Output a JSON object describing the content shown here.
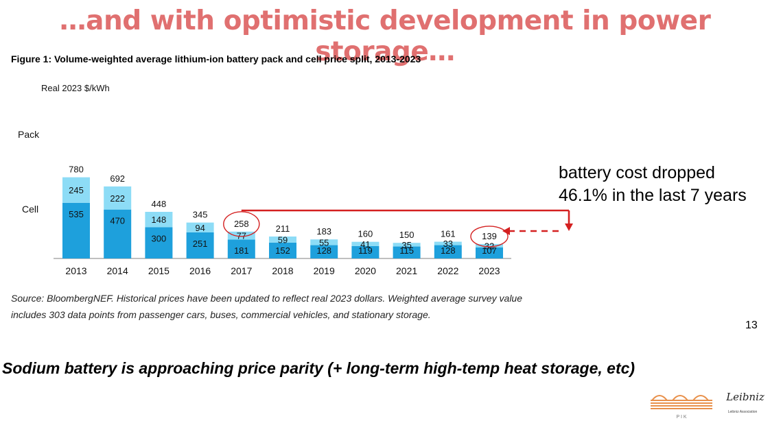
{
  "slide": {
    "heading": "…and with optimistic development in power storage…",
    "heading_color": "#e07070",
    "figure_title": "Figure 1: Volume-weighted average lithium-ion battery pack and cell price split, 2013-2023",
    "source_note": "Source: BloombergNEF. Historical prices have been updated to reflect real 2023 dollars. Weighted average survey value includes 303 data points from passenger cars, buses, commercial vehicles, and stationary storage.",
    "callout_line1": "battery cost dropped",
    "callout_line2": "46.1% in the last 7 years",
    "page_number": "13",
    "bottom_note": "Sodium battery is approaching price parity (+ long-term high-temp heat storage, etc)",
    "logo_pik": "P I K",
    "logo_leibniz": "Leibniz",
    "logo_leibniz_sub": "Leibniz Association"
  },
  "chart_data": {
    "type": "bar",
    "stacked": true,
    "ylabel": "Real 2023 $/kWh",
    "categories": [
      "2013",
      "2014",
      "2015",
      "2016",
      "2017",
      "2018",
      "2019",
      "2020",
      "2021",
      "2022",
      "2023"
    ],
    "series": [
      {
        "name": "Cell",
        "values": [
          535,
          470,
          300,
          251,
          181,
          152,
          128,
          119,
          115,
          128,
          107
        ],
        "color": "#1ea0dc"
      },
      {
        "name": "Pack",
        "values": [
          245,
          222,
          148,
          94,
          77,
          59,
          55,
          41,
          35,
          33,
          32
        ],
        "color": "#8ddcf6"
      }
    ],
    "totals": [
      780,
      692,
      448,
      345,
      258,
      211,
      183,
      160,
      150,
      161,
      139
    ],
    "ylim": [
      0,
      800
    ],
    "grid": false,
    "highlighted_categories": [
      "2017",
      "2023"
    ],
    "annotation_color": "#d42020"
  }
}
